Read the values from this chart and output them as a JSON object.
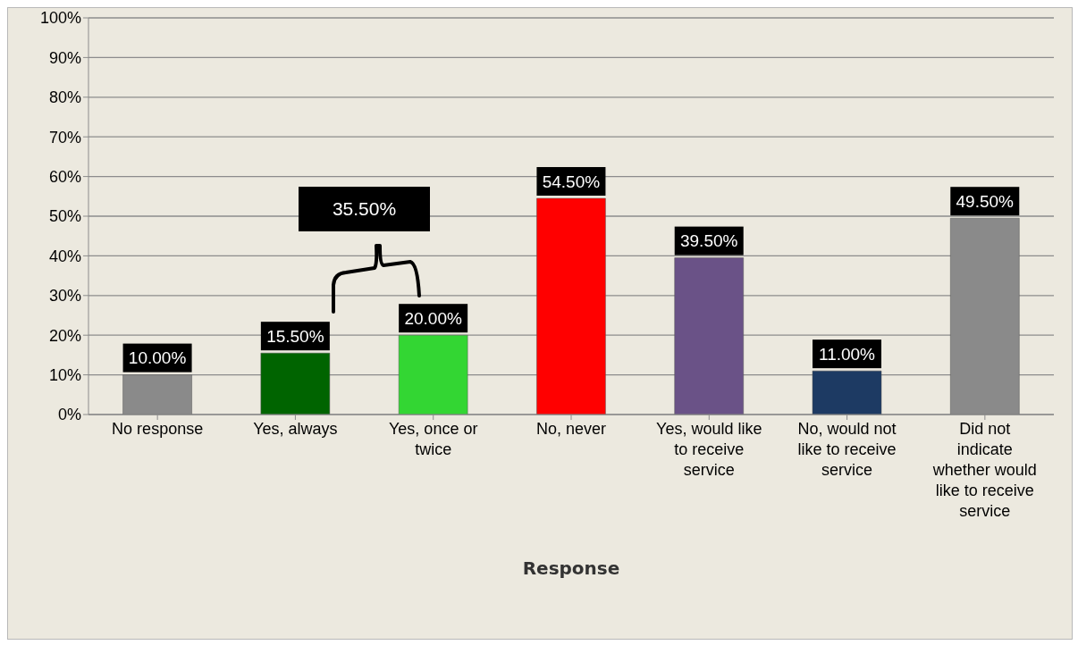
{
  "chart_data": {
    "type": "bar",
    "xlabel": "Response",
    "categories": [
      "No response",
      "Yes, always",
      "Yes, once or twice",
      "No, never",
      "Yes, would like to receive service",
      "No, would not like to receive service",
      "Did not indicate whether would like to receive service"
    ],
    "values": [
      10.0,
      15.5,
      20.0,
      54.5,
      39.5,
      11.0,
      49.5
    ],
    "colors": [
      "#8a8a8a",
      "#006400",
      "#33d633",
      "#ff0000",
      "#6a5287",
      "#1d3a63",
      "#8a8a8a"
    ],
    "value_labels": [
      "10.00%",
      "15.50%",
      "20.00%",
      "54.50%",
      "39.50%",
      "11.00%",
      "49.50%"
    ],
    "ylim": [
      0,
      100
    ],
    "yticks": [
      {
        "value": 0,
        "label": "0%"
      },
      {
        "value": 10,
        "label": "10%"
      },
      {
        "value": 20,
        "label": "20%"
      },
      {
        "value": 30,
        "label": "30%"
      },
      {
        "value": 40,
        "label": "40%"
      },
      {
        "value": 50,
        "label": "50%"
      },
      {
        "value": 60,
        "label": "60%"
      },
      {
        "value": 70,
        "label": "70%"
      },
      {
        "value": 80,
        "label": "80%"
      },
      {
        "value": 90,
        "label": "90%"
      },
      {
        "value": 100,
        "label": "100%"
      }
    ],
    "grid": "y",
    "legend": false,
    "annotations": [
      "35.50%"
    ]
  }
}
